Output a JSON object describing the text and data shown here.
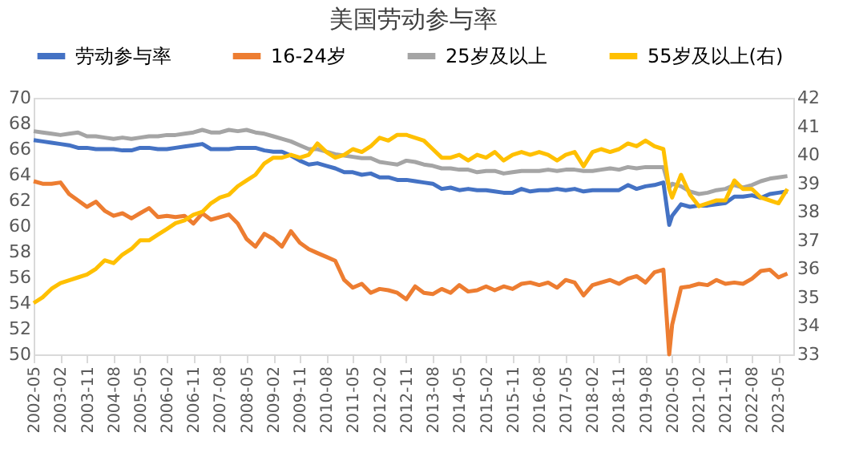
{
  "chart_data": {
    "type": "line",
    "title": "美国劳动参与率",
    "legend": "top",
    "x": [
      "2002-05",
      "2002-08",
      "2002-11",
      "2003-02",
      "2003-05",
      "2003-08",
      "2003-11",
      "2004-02",
      "2004-05",
      "2004-08",
      "2004-11",
      "2005-02",
      "2005-05",
      "2005-08",
      "2005-11",
      "2006-02",
      "2006-05",
      "2006-08",
      "2006-11",
      "2007-02",
      "2007-05",
      "2007-08",
      "2007-11",
      "2008-02",
      "2008-05",
      "2008-08",
      "2008-11",
      "2009-02",
      "2009-05",
      "2009-08",
      "2009-11",
      "2010-02",
      "2010-05",
      "2010-08",
      "2010-11",
      "2011-02",
      "2011-05",
      "2011-08",
      "2011-11",
      "2012-02",
      "2012-05",
      "2012-08",
      "2012-11",
      "2013-02",
      "2013-05",
      "2013-08",
      "2013-11",
      "2014-02",
      "2014-05",
      "2014-08",
      "2014-11",
      "2015-02",
      "2015-05",
      "2015-08",
      "2015-11",
      "2016-02",
      "2016-05",
      "2016-08",
      "2016-11",
      "2017-02",
      "2017-05",
      "2017-08",
      "2017-11",
      "2018-02",
      "2018-05",
      "2018-08",
      "2018-11",
      "2019-02",
      "2019-05",
      "2019-08",
      "2019-11",
      "2020-02",
      "2020-04",
      "2020-05",
      "2020-08",
      "2020-11",
      "2021-02",
      "2021-05",
      "2021-08",
      "2021-11",
      "2022-02",
      "2022-05",
      "2022-08",
      "2022-11",
      "2023-02",
      "2023-05",
      "2023-08"
    ],
    "xlim": [
      "2002-05",
      "2023-10"
    ],
    "xticks": [
      "2002-05",
      "2003-02",
      "2003-11",
      "2004-08",
      "2005-05",
      "2006-02",
      "2006-11",
      "2007-08",
      "2008-05",
      "2009-02",
      "2009-11",
      "2010-08",
      "2011-05",
      "2012-02",
      "2012-11",
      "2013-08",
      "2014-05",
      "2015-02",
      "2015-11",
      "2016-08",
      "2017-05",
      "2018-02",
      "2018-11",
      "2019-08",
      "2020-05",
      "2021-02",
      "2021-11",
      "2022-08",
      "2023-05"
    ],
    "ylim": [
      50,
      70
    ],
    "yticks": [
      50,
      52,
      54,
      56,
      58,
      60,
      62,
      64,
      66,
      68,
      70
    ],
    "y2lim": [
      33,
      42
    ],
    "y2ticks": [
      33,
      34,
      35,
      36,
      37,
      38,
      39,
      40,
      41,
      42
    ],
    "series": [
      {
        "name": "劳动参与率",
        "color": "#4472c4",
        "values": [
          66.7,
          66.6,
          66.5,
          66.4,
          66.3,
          66.1,
          66.1,
          66.0,
          66.0,
          66.0,
          65.9,
          65.9,
          66.1,
          66.1,
          66.0,
          66.0,
          66.1,
          66.2,
          66.3,
          66.4,
          66.0,
          66.0,
          66.0,
          66.1,
          66.1,
          66.1,
          65.9,
          65.8,
          65.8,
          65.5,
          65.1,
          64.8,
          64.9,
          64.7,
          64.5,
          64.2,
          64.2,
          64.0,
          64.1,
          63.8,
          63.8,
          63.6,
          63.6,
          63.5,
          63.4,
          63.3,
          62.9,
          63.0,
          62.8,
          62.9,
          62.8,
          62.8,
          62.7,
          62.6,
          62.6,
          62.9,
          62.7,
          62.8,
          62.8,
          62.9,
          62.8,
          62.9,
          62.7,
          62.8,
          62.8,
          62.8,
          62.8,
          63.2,
          62.9,
          63.1,
          63.2,
          63.4,
          60.1,
          60.8,
          61.7,
          61.5,
          61.6,
          61.6,
          61.7,
          61.8,
          62.3,
          62.3,
          62.4,
          62.2,
          62.5,
          62.6,
          62.7
        ]
      },
      {
        "name": "16-24岁",
        "color": "#ed7d31",
        "values": [
          63.5,
          63.3,
          63.3,
          63.4,
          62.5,
          62.0,
          61.5,
          61.9,
          61.2,
          60.8,
          61.0,
          60.6,
          61.0,
          61.4,
          60.7,
          60.8,
          60.7,
          60.8,
          60.2,
          61.0,
          60.5,
          60.7,
          60.9,
          60.2,
          59.0,
          58.4,
          59.4,
          59.0,
          58.4,
          59.6,
          58.7,
          58.2,
          57.9,
          57.6,
          57.3,
          55.8,
          55.2,
          55.5,
          54.8,
          55.1,
          55.0,
          54.8,
          54.3,
          55.3,
          54.8,
          54.7,
          55.1,
          54.8,
          55.4,
          54.9,
          55.0,
          55.3,
          55.0,
          55.3,
          55.1,
          55.5,
          55.6,
          55.4,
          55.6,
          55.2,
          55.8,
          55.6,
          54.6,
          55.4,
          55.6,
          55.8,
          55.5,
          55.9,
          56.1,
          55.6,
          56.4,
          56.6,
          50.0,
          52.3,
          55.2,
          55.3,
          55.5,
          55.4,
          55.8,
          55.5,
          55.6,
          55.5,
          55.9,
          56.5,
          56.6,
          56.0,
          56.3
        ]
      },
      {
        "name": "25岁及以上",
        "color": "#a5a5a5",
        "values": [
          67.4,
          67.3,
          67.2,
          67.1,
          67.2,
          67.3,
          67.0,
          67.0,
          66.9,
          66.8,
          66.9,
          66.8,
          66.9,
          67.0,
          67.0,
          67.1,
          67.1,
          67.2,
          67.3,
          67.5,
          67.3,
          67.3,
          67.5,
          67.4,
          67.5,
          67.3,
          67.2,
          67.0,
          66.8,
          66.6,
          66.3,
          66.0,
          66.0,
          65.8,
          65.6,
          65.5,
          65.4,
          65.3,
          65.3,
          65.0,
          64.9,
          64.8,
          65.1,
          65.0,
          64.8,
          64.7,
          64.5,
          64.5,
          64.4,
          64.4,
          64.2,
          64.3,
          64.3,
          64.1,
          64.2,
          64.3,
          64.3,
          64.3,
          64.4,
          64.3,
          64.4,
          64.4,
          64.3,
          64.3,
          64.4,
          64.5,
          64.4,
          64.6,
          64.5,
          64.6,
          64.6,
          64.6,
          63.0,
          63.3,
          63.1,
          62.7,
          62.5,
          62.6,
          62.8,
          62.9,
          63.2,
          63.0,
          63.2,
          63.5,
          63.7,
          63.8,
          63.9
        ]
      },
      {
        "name": "55岁及以上(右)",
        "color": "#ffc000",
        "axis": "y2",
        "values": [
          34.8,
          35.0,
          35.3,
          35.5,
          35.6,
          35.7,
          35.8,
          36.0,
          36.3,
          36.2,
          36.5,
          36.7,
          37.0,
          37.0,
          37.2,
          37.4,
          37.6,
          37.7,
          37.9,
          38.0,
          38.3,
          38.5,
          38.6,
          38.9,
          39.1,
          39.3,
          39.7,
          39.9,
          39.9,
          40.0,
          39.9,
          40.0,
          40.4,
          40.1,
          39.9,
          40.0,
          40.2,
          40.1,
          40.3,
          40.6,
          40.5,
          40.7,
          40.7,
          40.6,
          40.5,
          40.2,
          39.9,
          39.9,
          40.0,
          39.8,
          40.0,
          39.9,
          40.1,
          39.8,
          40.0,
          40.1,
          40.0,
          40.1,
          40.0,
          39.8,
          40.0,
          40.1,
          39.6,
          40.1,
          40.2,
          40.1,
          40.2,
          40.4,
          40.3,
          40.5,
          40.3,
          40.2,
          38.8,
          38.5,
          39.3,
          38.6,
          38.2,
          38.3,
          38.4,
          38.4,
          39.1,
          38.8,
          38.8,
          38.5,
          38.4,
          38.3,
          38.8
        ]
      }
    ]
  }
}
